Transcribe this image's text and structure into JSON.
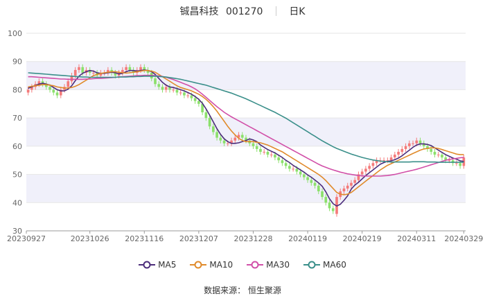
{
  "header": {
    "name": "铖昌科技",
    "code": "001270",
    "period": "日K"
  },
  "source_text": "数据来源： 恒生聚源",
  "colors": {
    "up": "#f47a7a",
    "down": "#8be06b",
    "grid": "#e6e6e6",
    "band": "#f0f0fa",
    "axis": "#666666"
  },
  "chart_data": {
    "type": "candlestick",
    "title": "",
    "ylim": [
      30,
      100
    ],
    "yticks": [
      30,
      40,
      50,
      60,
      70,
      80,
      90,
      100
    ],
    "x_tick_labels": [
      {
        "index": 0,
        "label": "20230927"
      },
      {
        "index": 17,
        "label": "20231026"
      },
      {
        "index": 32,
        "label": "20231116"
      },
      {
        "index": 47,
        "label": "20231207"
      },
      {
        "index": 62,
        "label": "20231228"
      },
      {
        "index": 77,
        "label": "20240119"
      },
      {
        "index": 92,
        "label": "20240219"
      },
      {
        "index": 107,
        "label": "20240311"
      },
      {
        "index": 120,
        "label": "20240329"
      }
    ],
    "candles": {
      "close": [
        80,
        81,
        82,
        83,
        82,
        81,
        80,
        79,
        78,
        80,
        81,
        83,
        85,
        87,
        88,
        86,
        87,
        86,
        86,
        85,
        86,
        86,
        87,
        86,
        85,
        86,
        87,
        88,
        87,
        86,
        87,
        88,
        87,
        86,
        84,
        82,
        81,
        80,
        81,
        80,
        80,
        79,
        79,
        78,
        78,
        77,
        76,
        75,
        72,
        70,
        67,
        65,
        63,
        62,
        61,
        61,
        62,
        63,
        64,
        63,
        62,
        61,
        60,
        59,
        58,
        58,
        57,
        57,
        56,
        55,
        54,
        53,
        52,
        52,
        51,
        50,
        49,
        48,
        47,
        46,
        44,
        42,
        40,
        38,
        37,
        42,
        44,
        45,
        46,
        47,
        48,
        50,
        51,
        52,
        53,
        54,
        55,
        55,
        55,
        55,
        56,
        57,
        58,
        59,
        60,
        61,
        61,
        62,
        61,
        60,
        59,
        58,
        57,
        57,
        56,
        55,
        55,
        54,
        54,
        53,
        56
      ],
      "open": [
        79,
        80,
        81,
        82,
        83,
        82,
        81,
        80,
        79,
        78,
        80,
        81,
        83,
        85,
        87,
        88,
        86,
        87,
        86,
        86,
        85,
        86,
        86,
        87,
        86,
        85,
        86,
        87,
        88,
        87,
        86,
        87,
        88,
        87,
        86,
        84,
        82,
        81,
        80,
        81,
        80,
        80,
        79,
        79,
        78,
        78,
        77,
        76,
        75,
        72,
        70,
        67,
        65,
        63,
        62,
        61,
        61,
        62,
        63,
        64,
        63,
        62,
        61,
        60,
        59,
        58,
        58,
        57,
        57,
        56,
        55,
        54,
        53,
        52,
        52,
        51,
        50,
        49,
        48,
        47,
        46,
        44,
        42,
        40,
        38,
        36,
        42,
        44,
        45,
        46,
        47,
        48,
        50,
        51,
        52,
        53,
        54,
        55,
        55,
        55,
        55,
        56,
        57,
        58,
        59,
        60,
        61,
        61,
        62,
        61,
        60,
        59,
        58,
        57,
        57,
        56,
        55,
        55,
        54,
        54,
        53
      ]
    },
    "series": [
      {
        "name": "MA5",
        "color": "#4b2c7a",
        "values": [
          80.5,
          81,
          81.5,
          82,
          82.3,
          82,
          81.6,
          80.8,
          80,
          79.6,
          79.6,
          80.2,
          81.4,
          83.2,
          84.8,
          85.8,
          86.4,
          86.8,
          86.6,
          86,
          85.8,
          85.8,
          86,
          86.2,
          86,
          85.6,
          85.8,
          86.4,
          86.8,
          86.8,
          86.6,
          86.8,
          87,
          86.8,
          86.4,
          85.4,
          84,
          82.6,
          81.6,
          81,
          80.8,
          80.4,
          80,
          79.6,
          79,
          78.4,
          77.6,
          76.6,
          75.2,
          73.2,
          71,
          68.6,
          66.2,
          64.2,
          62.6,
          61.6,
          61,
          61,
          61.2,
          61.6,
          62,
          62.6,
          62.2,
          61.6,
          60.4,
          59.6,
          58.8,
          58.2,
          57.6,
          56.8,
          56,
          55,
          54.2,
          53.2,
          52.4,
          51.6,
          50.8,
          49.8,
          49,
          48,
          47,
          45.8,
          43.8,
          41.4,
          39.6,
          38.8,
          39.4,
          40.8,
          42.4,
          44.8,
          46.2,
          47.2,
          48.4,
          49.6,
          50.6,
          51.6,
          52.6,
          53.6,
          54.2,
          54.6,
          54.8,
          55.2,
          55.8,
          56.6,
          57.6,
          58.6,
          59.6,
          60.4,
          60.8,
          60.8,
          60.6,
          60.2,
          59.4,
          58.6,
          57.8,
          57,
          56.4,
          55.8,
          55.4,
          54.8,
          54.6
        ]
      },
      {
        "name": "MA10",
        "color": "#e08a2a",
        "values": [
          81,
          81.2,
          81.4,
          81.6,
          81.8,
          81.8,
          81.6,
          81.4,
          81,
          80.8,
          80.6,
          80.6,
          80.8,
          81.2,
          81.8,
          82.6,
          83.4,
          84.2,
          85,
          85.4,
          85.8,
          86,
          86.2,
          86.4,
          86.4,
          86.2,
          86,
          85.9,
          86,
          86.2,
          86.4,
          86.6,
          86.8,
          86.8,
          86.6,
          86.2,
          85.4,
          84.6,
          83.8,
          83,
          82.2,
          81.4,
          80.8,
          80.4,
          80,
          79.6,
          79,
          78.4,
          77.6,
          76.6,
          75.4,
          74,
          72.4,
          70.6,
          68.8,
          67,
          65.4,
          64,
          62.8,
          62,
          61.6,
          61.6,
          61.6,
          61.4,
          61.2,
          60.8,
          60.4,
          59.8,
          59.2,
          58.6,
          58,
          57.2,
          56.4,
          55.6,
          54.8,
          54,
          53.2,
          52.4,
          51.6,
          50.8,
          50,
          49,
          47.8,
          46.4,
          45,
          43.6,
          43,
          42.8,
          43,
          43.6,
          44.6,
          45.6,
          46.6,
          47.6,
          48.6,
          49.6,
          50.6,
          51.6,
          52.4,
          53.2,
          53.8,
          54.4,
          55,
          55.6,
          56.2,
          56.8,
          57.4,
          58,
          58.6,
          59,
          59.2,
          59.4,
          59.4,
          59.2,
          58.8,
          58.4,
          58,
          57.6,
          57.2,
          57,
          57
        ]
      },
      {
        "name": "MA30",
        "color": "#d14fa8",
        "values": [
          84.6,
          84.6,
          84.5,
          84.4,
          84.3,
          84.2,
          84.1,
          84,
          83.9,
          83.8,
          83.8,
          83.7,
          83.7,
          83.7,
          83.7,
          83.7,
          83.8,
          83.8,
          83.9,
          84,
          84,
          84.1,
          84.2,
          84.3,
          84.4,
          84.5,
          84.6,
          84.7,
          84.8,
          84.9,
          85,
          85,
          85.1,
          85.1,
          85.1,
          85,
          84.9,
          84.7,
          84.4,
          84,
          83.6,
          83.1,
          82.6,
          82.1,
          81.6,
          81,
          80.3,
          79.4,
          78.4,
          77.3,
          76.2,
          75.1,
          74,
          73,
          72,
          71.2,
          70.4,
          69.7,
          69,
          68.3,
          67.6,
          66.9,
          66.2,
          65.5,
          64.8,
          64.1,
          63.4,
          62.7,
          62,
          61.3,
          60.6,
          59.9,
          59.2,
          58.5,
          57.8,
          57.1,
          56.4,
          55.7,
          55,
          54.3,
          53.6,
          53,
          52.5,
          52,
          51.6,
          51.2,
          50.8,
          50.5,
          50.2,
          50,
          49.8,
          49.6,
          49.5,
          49.4,
          49.4,
          49.4,
          49.4,
          49.4,
          49.5,
          49.6,
          49.8,
          50,
          50.3,
          50.6,
          50.9,
          51.2,
          51.5,
          51.8,
          52.2,
          52.6,
          53,
          53.4,
          53.8,
          54.2,
          54.6,
          55,
          55.3,
          55.5,
          55.7,
          55.9,
          56
        ]
      },
      {
        "name": "MA60",
        "color": "#3a8f8a",
        "values": [
          86,
          85.9,
          85.8,
          85.7,
          85.6,
          85.5,
          85.4,
          85.3,
          85.2,
          85.1,
          85,
          84.9,
          84.8,
          84.7,
          84.6,
          84.5,
          84.5,
          84.4,
          84.4,
          84.4,
          84.4,
          84.4,
          84.4,
          84.4,
          84.4,
          84.5,
          84.5,
          84.5,
          84.6,
          84.6,
          84.7,
          84.7,
          84.8,
          84.8,
          84.8,
          84.8,
          84.7,
          84.6,
          84.5,
          84.3,
          84.1,
          83.9,
          83.7,
          83.4,
          83.1,
          82.8,
          82.5,
          82.2,
          81.9,
          81.6,
          81.2,
          80.8,
          80.4,
          80,
          79.6,
          79.2,
          78.8,
          78.3,
          77.8,
          77.3,
          76.8,
          76.2,
          75.6,
          75,
          74.4,
          73.8,
          73.2,
          72.6,
          72,
          71.3,
          70.6,
          69.9,
          69.1,
          68.3,
          67.5,
          66.7,
          65.9,
          65.1,
          64.3,
          63.5,
          62.7,
          61.9,
          61.2,
          60.5,
          59.8,
          59.2,
          58.7,
          58.2,
          57.7,
          57.2,
          56.8,
          56.4,
          56,
          55.7,
          55.4,
          55.1,
          54.9,
          54.7,
          54.6,
          54.5,
          54.4,
          54.4,
          54.4,
          54.4,
          54.4,
          54.4,
          54.5,
          54.5,
          54.5,
          54.5,
          54.4,
          54.4,
          54.4,
          54.3,
          54.3,
          54.3,
          54.3,
          54.3,
          54.3,
          54.3,
          54.3
        ]
      }
    ]
  }
}
